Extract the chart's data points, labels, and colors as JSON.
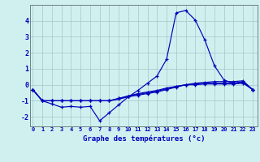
{
  "title": "Graphe des températures (°c)",
  "bg_color": "#d0f0f0",
  "grid_color": "#a8cece",
  "line_color": "#0000bb",
  "x_ticks": [
    0,
    1,
    2,
    3,
    4,
    5,
    6,
    7,
    8,
    9,
    10,
    11,
    12,
    13,
    14,
    15,
    16,
    17,
    18,
    19,
    20,
    21,
    22,
    23
  ],
  "yticks": [
    -2,
    -1,
    0,
    1,
    2,
    3,
    4
  ],
  "ylim": [
    -2.6,
    5.0
  ],
  "xlim": [
    -0.3,
    23.5
  ],
  "series1_x": [
    0,
    1,
    2,
    3,
    4,
    5,
    6,
    7,
    8,
    9,
    10,
    11,
    12,
    13,
    14,
    15,
    16,
    17,
    18,
    19,
    20,
    21,
    22,
    23
  ],
  "series1_y": [
    -0.3,
    -1.0,
    -1.2,
    -1.4,
    -1.35,
    -1.4,
    -1.35,
    -2.25,
    -1.75,
    -1.25,
    -0.75,
    -0.35,
    0.1,
    0.55,
    1.6,
    4.5,
    4.65,
    4.05,
    2.8,
    1.2,
    0.3,
    0.1,
    0.2,
    -0.3
  ],
  "series2_x": [
    0,
    1,
    2,
    3,
    4,
    5,
    6,
    7,
    8,
    9,
    10,
    11,
    12,
    13,
    14,
    15,
    16,
    17,
    18,
    19,
    20,
    21,
    22,
    23
  ],
  "series2_y": [
    -0.3,
    -1.0,
    -1.0,
    -1.0,
    -1.0,
    -1.0,
    -1.0,
    -1.0,
    -1.0,
    -0.85,
    -0.7,
    -0.55,
    -0.45,
    -0.35,
    -0.2,
    -0.1,
    0.0,
    0.1,
    0.15,
    0.2,
    0.2,
    0.2,
    0.25,
    -0.3
  ],
  "series3_x": [
    0,
    1,
    2,
    3,
    4,
    5,
    6,
    7,
    8,
    9,
    10,
    11,
    12,
    13,
    14,
    15,
    16,
    17,
    18,
    19,
    20,
    21,
    22,
    23
  ],
  "series3_y": [
    -0.3,
    -1.0,
    -1.0,
    -1.0,
    -1.0,
    -1.0,
    -1.0,
    -1.0,
    -1.0,
    -0.85,
    -0.7,
    -0.6,
    -0.5,
    -0.4,
    -0.25,
    -0.1,
    0.0,
    0.05,
    0.1,
    0.1,
    0.1,
    0.1,
    0.15,
    -0.3
  ],
  "series4_x": [
    0,
    1,
    2,
    3,
    4,
    5,
    6,
    7,
    8,
    9,
    10,
    11,
    12,
    13,
    14,
    15,
    16,
    17,
    18,
    19,
    20,
    21,
    22,
    23
  ],
  "series4_y": [
    -0.3,
    -1.0,
    -1.0,
    -1.0,
    -1.0,
    -1.0,
    -1.0,
    -1.0,
    -1.0,
    -0.9,
    -0.75,
    -0.65,
    -0.55,
    -0.45,
    -0.3,
    -0.15,
    0.0,
    0.0,
    0.05,
    0.05,
    0.05,
    0.05,
    0.1,
    -0.3
  ]
}
